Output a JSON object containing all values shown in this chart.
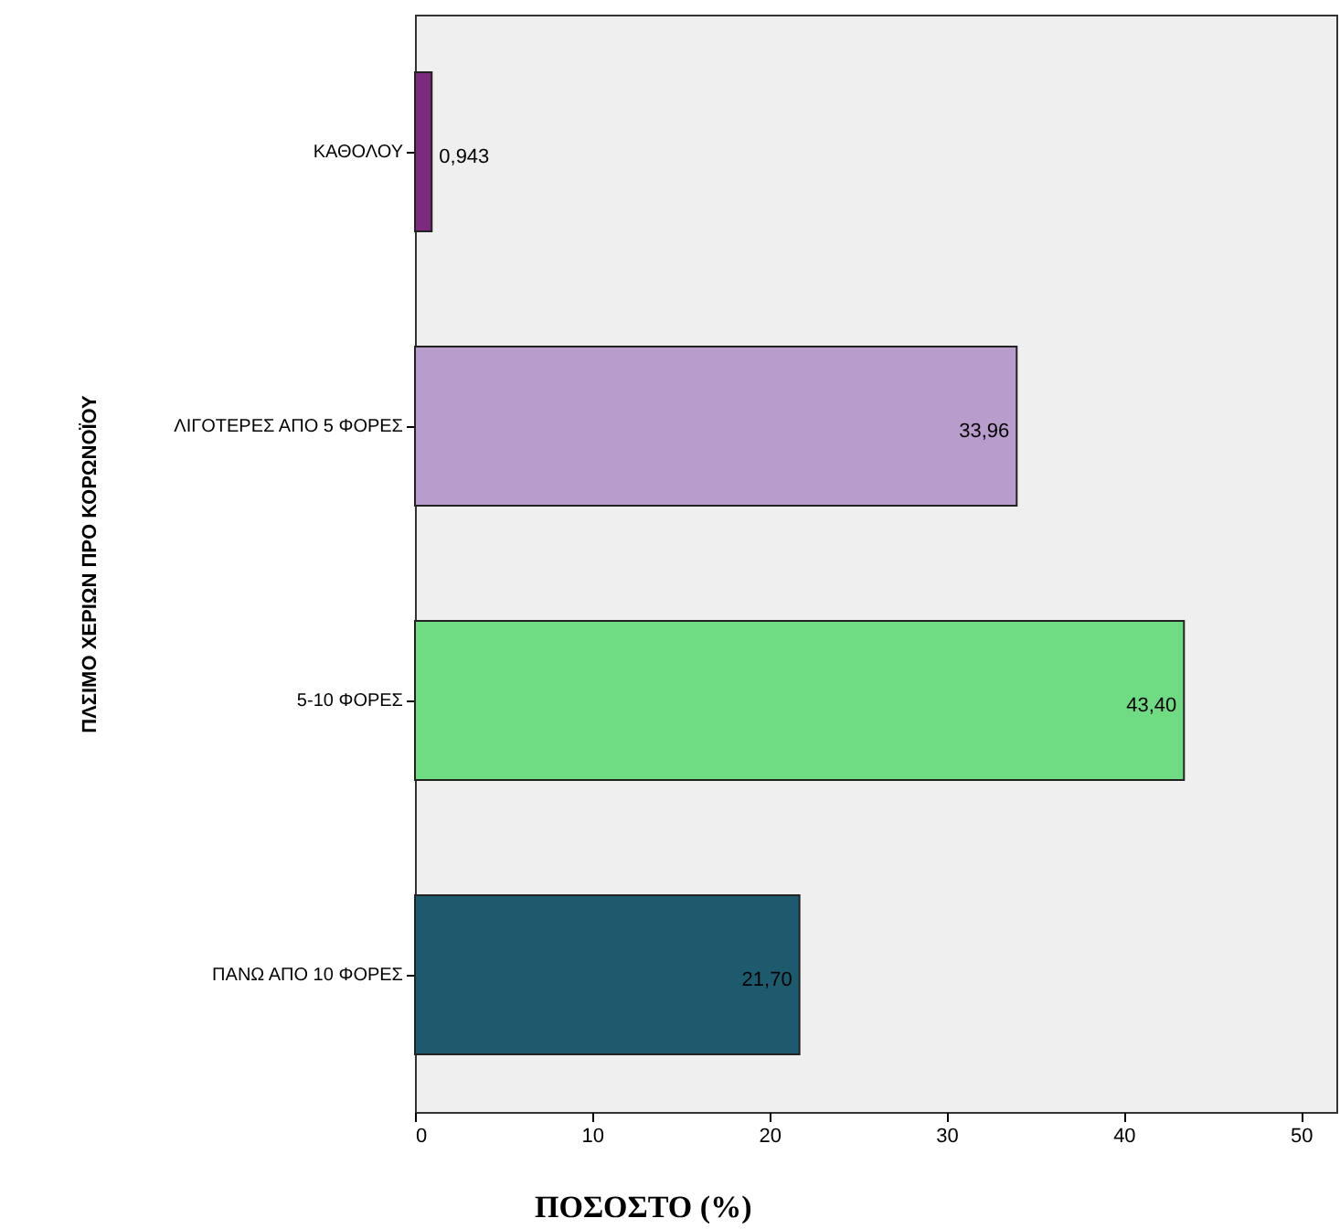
{
  "chart_data": {
    "type": "bar",
    "orientation": "horizontal",
    "xlabel": "ΠΟΣΟΣΤΟ (%)",
    "ylabel": "ΠΛΣΙΜΟ ΧΕΡΙΩΝ ΠΡΟ ΚΟΡΩΝΟΪΟΥ",
    "categories": [
      "ΚΑΘΟΛΟΥ",
      "ΛΙΓΟΤΕΡΕΣ ΑΠΟ 5 ΦΟΡΕΣ",
      "5-10 ΦΟΡΕΣ",
      "ΠΑΝΩ ΑΠΟ 10 ΦΟΡΕΣ"
    ],
    "values": [
      0.943,
      33.96,
      43.4,
      21.7
    ],
    "value_labels": [
      "0,943",
      "33,96",
      "43,40",
      "21,70"
    ],
    "colors": [
      "#7b2a7e",
      "#b89ccb",
      "#6fdc84",
      "#1d5a6e"
    ],
    "xlim": [
      0,
      52
    ],
    "xticks": [
      0,
      10,
      20,
      30,
      40,
      50
    ]
  }
}
